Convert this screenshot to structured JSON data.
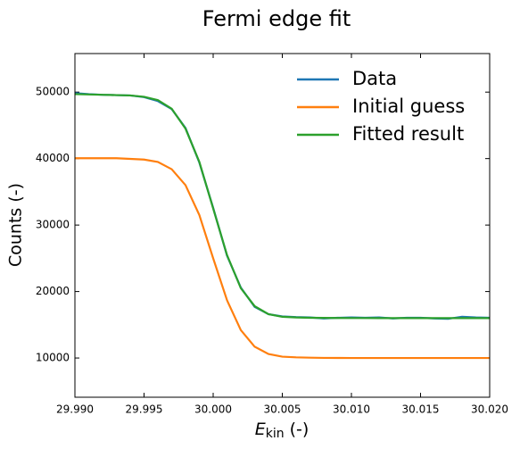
{
  "chart_data": {
    "type": "line",
    "title": "Fermi edge fit",
    "xlabel": {
      "main": "E",
      "sub": "kin",
      "unit": "(-)"
    },
    "ylabel": "Counts (-)",
    "x": [
      29.99,
      29.991,
      29.992,
      29.993,
      29.994,
      29.995,
      29.996,
      29.997,
      29.998,
      29.999,
      30.0,
      30.001,
      30.002,
      30.003,
      30.004,
      30.005,
      30.006,
      30.007,
      30.008,
      30.009,
      30.01,
      30.011,
      30.012,
      30.013,
      30.014,
      30.015,
      30.016,
      30.017,
      30.018,
      30.019,
      30.02
    ],
    "series": [
      {
        "name": "Data",
        "color": "#1f77b4",
        "values": [
          49850,
          49700,
          49600,
          49550,
          49500,
          49250,
          48650,
          47450,
          44600,
          39400,
          32600,
          25400,
          20600,
          17700,
          16600,
          16250,
          16150,
          16100,
          15950,
          16050,
          16100,
          16050,
          16100,
          15950,
          16050,
          16050,
          15950,
          15900,
          16200,
          16100,
          16050
        ]
      },
      {
        "name": "Initial guess",
        "color": "#ff7f0e",
        "values": [
          40050,
          40050,
          40050,
          40050,
          39950,
          39850,
          39500,
          38400,
          36000,
          31500,
          25000,
          18700,
          14200,
          11700,
          10600,
          10200,
          10100,
          10050,
          10020,
          10010,
          10000,
          10000,
          10000,
          10000,
          10000,
          10000,
          10000,
          10000,
          10000,
          10000,
          10000
        ]
      },
      {
        "name": "Fitted result",
        "color": "#2ca02c",
        "values": [
          49700,
          49650,
          49600,
          49550,
          49500,
          49300,
          48800,
          47500,
          44500,
          39500,
          32500,
          25500,
          20500,
          17800,
          16600,
          16200,
          16100,
          16050,
          16030,
          16020,
          16010,
          16010,
          16000,
          16000,
          16000,
          16000,
          16000,
          16000,
          16000,
          16000,
          16000
        ]
      }
    ],
    "xlim": [
      29.99,
      30.02
    ],
    "xticks": [
      {
        "value": 29.99,
        "label": "29.990"
      },
      {
        "value": 29.995,
        "label": "29.995"
      },
      {
        "value": 30.0,
        "label": "30.000"
      },
      {
        "value": 30.005,
        "label": "30.005"
      },
      {
        "value": 30.01,
        "label": "30.010"
      },
      {
        "value": 30.015,
        "label": "30.015"
      },
      {
        "value": 30.02,
        "label": "30.020"
      }
    ],
    "ylim": [
      4100,
      55800
    ],
    "yticks": [
      10000,
      20000,
      30000,
      40000,
      50000
    ],
    "legend": "upper right",
    "grid": false
  }
}
